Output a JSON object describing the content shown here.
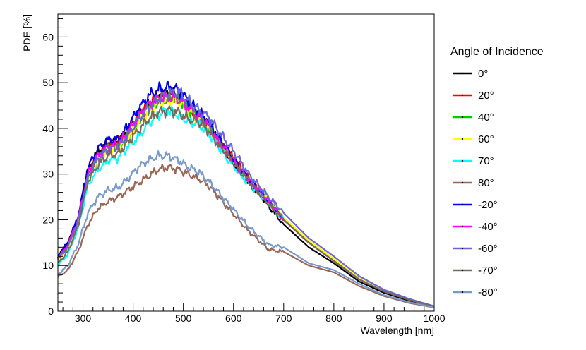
{
  "chart_data": {
    "type": "line",
    "title": "",
    "xlabel": "Wavelength [nm]",
    "ylabel": "PDE [%]",
    "xlim": [
      250,
      1000
    ],
    "ylim": [
      0,
      65
    ],
    "x_ticks": [
      "300",
      "400",
      "500",
      "600",
      "700",
      "800",
      "900",
      "1000"
    ],
    "y_ticks": [
      "0",
      "10",
      "20",
      "30",
      "40",
      "50",
      "60"
    ],
    "grid": false,
    "legend": {
      "title": "Angle of Incidence",
      "position": "right"
    },
    "series": [
      {
        "name": "0°",
        "color": "#000000",
        "x": [
          250,
          270,
          290,
          310,
          330,
          350,
          370,
          390,
          410,
          430,
          450,
          470,
          490,
          510,
          530,
          550,
          570,
          590,
          610,
          630,
          650,
          670,
          700,
          750,
          800,
          850,
          900,
          950,
          1000
        ],
        "y": [
          12,
          15,
          20,
          31,
          35,
          37,
          37,
          40,
          43,
          45,
          47,
          48,
          47,
          45,
          43,
          41,
          37,
          34,
          31,
          28,
          26,
          23,
          19,
          14,
          10.5,
          6.5,
          4,
          2.3,
          1
        ]
      },
      {
        "name": "20°",
        "color": "#ff0000",
        "x": [
          250,
          270,
          290,
          310,
          330,
          350,
          370,
          390,
          410,
          430,
          450,
          470,
          490,
          510,
          530,
          550,
          570,
          590,
          610,
          630,
          650,
          670,
          700,
          750,
          800,
          850,
          900,
          950,
          1000
        ],
        "y": [
          11.5,
          14.5,
          20,
          30,
          34,
          36,
          37,
          39,
          42,
          45,
          46.5,
          47,
          47,
          45,
          42,
          40,
          37,
          35,
          32,
          29,
          26.5,
          24,
          20,
          15,
          11,
          7,
          4.3,
          2.5,
          1
        ]
      },
      {
        "name": "40°",
        "color": "#00cc00",
        "x": [
          250,
          270,
          290,
          310,
          330,
          350,
          370,
          390,
          410,
          430,
          450,
          470,
          490,
          510,
          530,
          550,
          570,
          590,
          610,
          630,
          650,
          670,
          700,
          750,
          800,
          850,
          900,
          950,
          1000
        ],
        "y": [
          11.5,
          14,
          19.5,
          29.5,
          33.5,
          35.5,
          36,
          38.5,
          41.5,
          44,
          46,
          46.5,
          46.5,
          44.5,
          42,
          40,
          37,
          34.5,
          31.5,
          29,
          26.5,
          24,
          20,
          15,
          11,
          7,
          4.3,
          2.5,
          1
        ]
      },
      {
        "name": "60°",
        "color": "#ffff00",
        "x": [
          250,
          270,
          290,
          310,
          330,
          350,
          370,
          390,
          410,
          430,
          450,
          470,
          490,
          510,
          530,
          550,
          570,
          590,
          610,
          630,
          650,
          670,
          700,
          750,
          800,
          850,
          900,
          950,
          1000
        ],
        "y": [
          11,
          13.5,
          19,
          29,
          33,
          35,
          35.5,
          38,
          41,
          43.5,
          45.5,
          46,
          46,
          44,
          42,
          40,
          37,
          34.5,
          32,
          29.5,
          27,
          24.5,
          20.5,
          15.5,
          11.5,
          7.5,
          4.6,
          2.6,
          1
        ]
      },
      {
        "name": "70°",
        "color": "#00ffff",
        "x": [
          250,
          270,
          290,
          310,
          330,
          350,
          370,
          390,
          410,
          430,
          450,
          470,
          490,
          510,
          530,
          550,
          570,
          590,
          610,
          630,
          650,
          670,
          700,
          750,
          800,
          850,
          900,
          950,
          1000
        ],
        "y": [
          10,
          12.5,
          18,
          27.5,
          31,
          33,
          33.5,
          36,
          38,
          41,
          43,
          44,
          43,
          41.5,
          41,
          39,
          36,
          33,
          30.5,
          28,
          26,
          23.5,
          20,
          15,
          11,
          7,
          4.3,
          2.5,
          1
        ]
      },
      {
        "name": "80°",
        "color": "#996655",
        "x": [
          250,
          270,
          290,
          310,
          330,
          350,
          370,
          390,
          410,
          430,
          450,
          470,
          490,
          510,
          530,
          550,
          570,
          590,
          610,
          630,
          650,
          670,
          700,
          750,
          800,
          850,
          900,
          950,
          1000
        ],
        "y": [
          7.5,
          9,
          13,
          19,
          22.5,
          24,
          25,
          26.5,
          28,
          29.5,
          31,
          31.5,
          31,
          30,
          29,
          27.5,
          25,
          22.5,
          20,
          17.5,
          15.5,
          13.5,
          13,
          10,
          8.5,
          5.5,
          3.3,
          1.8,
          0.8
        ]
      },
      {
        "name": "-20°",
        "color": "#0000ee",
        "x": [
          250,
          270,
          290,
          310,
          330,
          350,
          370,
          390,
          410,
          430,
          450,
          470,
          490,
          510,
          530,
          550,
          570,
          590,
          610,
          630,
          650,
          670,
          700,
          750,
          800,
          850,
          900,
          950,
          1000
        ],
        "y": [
          12,
          15,
          20.5,
          31.5,
          35.5,
          37.5,
          37.5,
          40.5,
          44,
          47,
          48.5,
          49,
          48.5,
          46,
          43.5,
          41.5,
          38,
          35,
          32,
          29,
          26.5,
          24,
          20,
          15,
          11,
          7,
          4.3,
          2.5,
          1
        ]
      },
      {
        "name": "-40°",
        "color": "#ff00ff",
        "x": [
          250,
          270,
          290,
          310,
          330,
          350,
          370,
          390,
          410,
          430,
          450,
          470,
          490,
          510,
          530,
          550,
          570,
          590,
          610,
          630,
          650,
          670,
          700,
          750,
          800,
          850,
          900,
          950,
          1000
        ],
        "y": [
          11.5,
          14.5,
          20,
          30,
          34,
          36,
          36.5,
          39,
          42.5,
          45,
          46.5,
          47,
          46.5,
          44.5,
          42.5,
          40.5,
          37,
          34.5,
          31.5,
          29,
          26.5,
          24,
          20,
          15,
          11,
          7,
          4.3,
          2.5,
          1
        ]
      },
      {
        "name": "-60°",
        "color": "#6666dd",
        "x": [
          250,
          270,
          290,
          310,
          330,
          350,
          370,
          390,
          410,
          430,
          450,
          470,
          490,
          510,
          530,
          550,
          570,
          590,
          610,
          630,
          650,
          670,
          700,
          750,
          800,
          850,
          900,
          950,
          1000
        ],
        "y": [
          11.5,
          14,
          19.5,
          29.5,
          33.5,
          35.5,
          36,
          38.5,
          42,
          44.5,
          46.5,
          47.5,
          48,
          46,
          44,
          42.5,
          39.5,
          36.5,
          33.5,
          30,
          27.5,
          25,
          21.5,
          16,
          12,
          7.7,
          4.7,
          2.7,
          1.1
        ]
      },
      {
        "name": "-70°",
        "color": "#7a6a5a",
        "x": [
          250,
          270,
          290,
          310,
          330,
          350,
          370,
          390,
          410,
          430,
          450,
          470,
          490,
          510,
          530,
          550,
          570,
          590,
          610,
          630,
          650,
          670,
          700,
          750,
          800,
          850,
          900,
          950,
          1000
        ],
        "y": [
          10.5,
          13,
          18.5,
          28.5,
          32,
          34,
          34.5,
          37,
          39.5,
          42,
          43.5,
          44,
          43.5,
          42,
          41.5,
          39.5,
          36.5,
          34,
          31,
          28.5,
          26,
          23.5,
          20,
          15,
          11,
          7,
          4.3,
          2.5,
          1
        ]
      },
      {
        "name": "-80°",
        "color": "#7799cc",
        "x": [
          250,
          270,
          290,
          310,
          330,
          350,
          370,
          390,
          410,
          430,
          450,
          470,
          490,
          510,
          530,
          550,
          570,
          590,
          610,
          630,
          650,
          670,
          700,
          750,
          800,
          850,
          900,
          950,
          1000
        ],
        "y": [
          8,
          10,
          14.5,
          21.5,
          25,
          26.5,
          27,
          29,
          31.5,
          33,
          34,
          34,
          33,
          31.5,
          30.5,
          28.5,
          26,
          23.5,
          21,
          18.5,
          16.5,
          14.5,
          14,
          10.5,
          9,
          6,
          3.5,
          2,
          0.8
        ]
      }
    ]
  }
}
